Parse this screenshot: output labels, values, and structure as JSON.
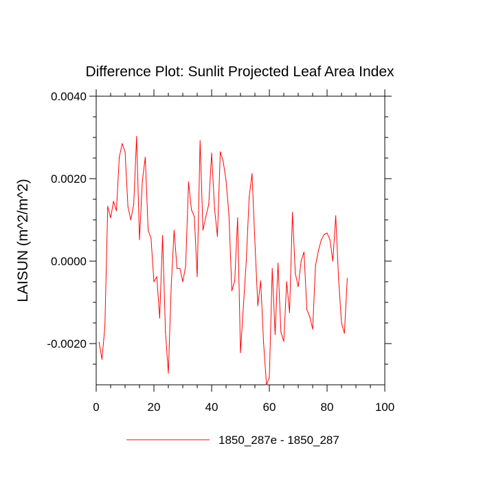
{
  "chart_data": {
    "type": "line",
    "title": "Difference Plot: Sunlit Projected Leaf Area Index",
    "xlabel": "",
    "ylabel": "LAISUN  (m^2/m^2)",
    "xlim": [
      0,
      100
    ],
    "ylim": [
      -0.003,
      0.004
    ],
    "x_ticks": [
      0,
      20,
      40,
      60,
      80,
      100
    ],
    "x_tick_labels": [
      "0",
      "20",
      "40",
      "60",
      "80",
      "100"
    ],
    "y_ticks": [
      -0.002,
      0.0,
      0.002,
      0.004
    ],
    "y_tick_labels": [
      "-0.0020",
      "0.0000",
      "0.0020",
      "0.0040"
    ],
    "grid": false,
    "legend_position": "bottom-center",
    "series": [
      {
        "name": "1850_287e - 1850_287",
        "color": "#ff0000",
        "x": [
          1,
          2,
          3,
          4,
          5,
          6,
          7,
          8,
          9,
          10,
          11,
          12,
          13,
          14,
          15,
          16,
          17,
          18,
          19,
          20,
          21,
          22,
          23,
          24,
          25,
          26,
          27,
          28,
          29,
          30,
          31,
          32,
          33,
          34,
          35,
          36,
          37,
          38,
          39,
          40,
          41,
          42,
          43,
          44,
          45,
          46,
          47,
          48,
          49,
          50,
          51,
          52,
          53,
          54,
          55,
          56,
          57,
          58,
          59,
          60,
          61,
          62,
          63,
          64,
          65,
          66,
          67,
          68,
          69,
          70,
          71,
          72,
          73,
          74,
          75,
          76,
          77,
          78,
          79,
          80,
          81,
          82,
          83,
          84,
          85,
          86,
          87
        ],
        "values": [
          -0.00197,
          -0.00238,
          -0.0016,
          0.00133,
          0.00105,
          0.00145,
          0.00122,
          0.00252,
          0.00285,
          0.00265,
          0.00132,
          0.001,
          0.00138,
          0.00302,
          0.00052,
          0.00195,
          0.00252,
          0.00075,
          0.00055,
          -0.0005,
          -0.00038,
          -0.00138,
          0.00062,
          -0.00172,
          -0.00272,
          -0.0006,
          0.00075,
          -0.00018,
          -0.00018,
          -0.0005,
          -0.00012,
          0.00192,
          0.00125,
          0.00108,
          -0.00038,
          0.00292,
          0.00075,
          0.00108,
          0.00138,
          0.00262,
          0.00128,
          0.0006,
          0.00265,
          0.00242,
          0.00195,
          0.00112,
          -0.00072,
          -0.00048,
          0.00105,
          -0.00222,
          -0.0011,
          0.0,
          0.00155,
          0.00212,
          0.00045,
          -0.00108,
          -0.00048,
          -0.00198,
          -0.003,
          -0.00282,
          -0.00018,
          -0.00178,
          -5e-05,
          -0.00172,
          -0.00195,
          -0.0005,
          -0.00125,
          0.00118,
          -0.0003,
          -0.00062,
          0.0,
          0.00022,
          -0.00118,
          -0.00135,
          -0.00165,
          -0.0001,
          0.00025,
          0.00052,
          0.00065,
          0.00068,
          0.00052,
          0.0,
          0.0011,
          -0.00045,
          -0.0015,
          -0.00175,
          -0.00042
        ]
      }
    ]
  }
}
